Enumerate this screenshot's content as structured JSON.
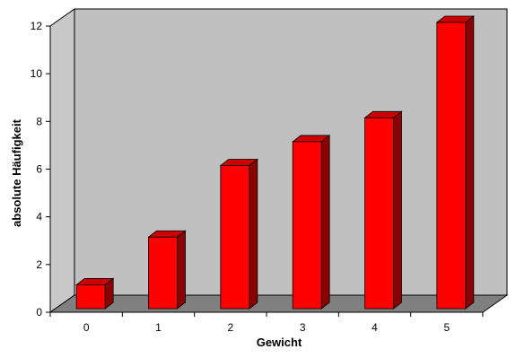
{
  "chart_data": {
    "type": "bar",
    "categories": [
      "0",
      "1",
      "2",
      "3",
      "4",
      "5"
    ],
    "values": [
      1,
      3,
      6,
      7,
      8,
      12
    ],
    "xlabel": "Gewicht",
    "ylabel": "absolute Häufigkeit",
    "ylim": [
      0,
      12
    ],
    "yticks": [
      0,
      2,
      4,
      6,
      8,
      10,
      12
    ],
    "grid": false,
    "legend": false,
    "three_d": true,
    "colors": {
      "bar_front": "#ff0000",
      "bar_side": "#8b0000",
      "bar_top": "#cc0000",
      "back_wall": "#c0c0c0",
      "side_wall": "#c8c8c8",
      "floor": "#808080"
    }
  }
}
